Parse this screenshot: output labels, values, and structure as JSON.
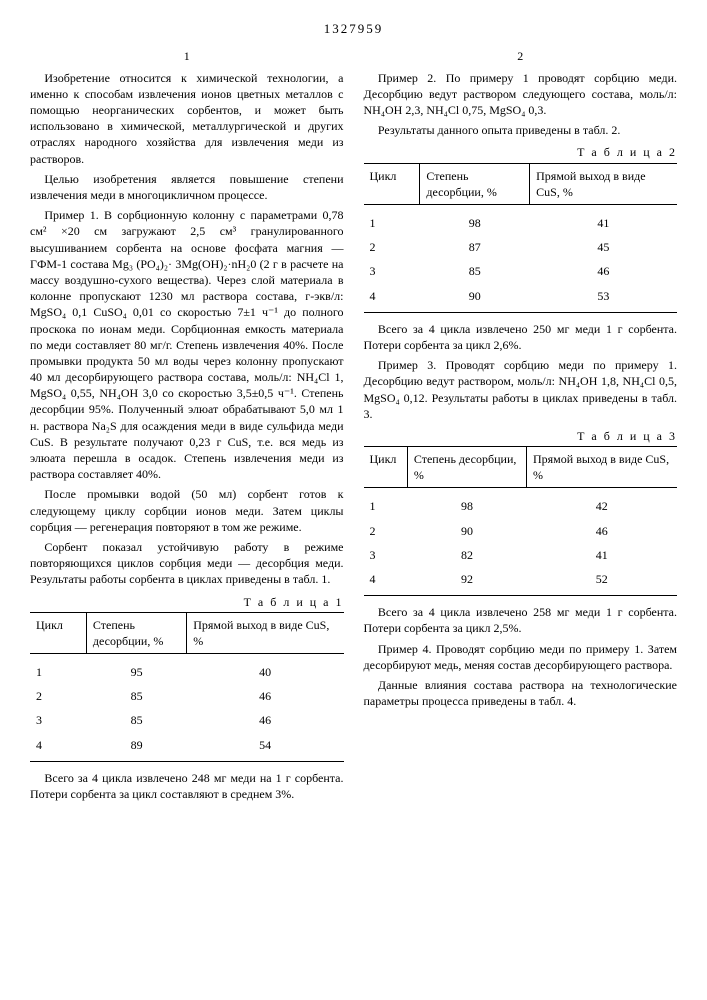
{
  "patent_number": "1327959",
  "left_col_num": "1",
  "right_col_num": "2",
  "line_markers": [
    "5",
    "10",
    "15",
    "20",
    "25",
    "30",
    "35",
    "40",
    "45",
    "50"
  ],
  "left": {
    "p1": "Изобретение относится к химической технологии, а именно к способам извлечения ионов цветных металлов с помощью неорганических сорбентов, и может быть использовано в химической, металлургической и других отраслях народного хозяйства для извлечения меди из растворов.",
    "p2": "Целью изобретения является повышение степени извлечения меди в многоцикличном процессе.",
    "p3": "Пример 1. В сорбционную колонну с параметрами 0,78 см² ×20 см загружают 2,5 см³ гранулированного высушиванием сорбента на основе фосфата магния — ГФМ-1 состава Mg₃ (PO₄)₂· 3Mg(OH)₂·nH₂0 (2 г в расчете на массу воздушно-сухого вещества). Через слой материала в колонне пропускают 1230 мл раствора состава, г-экв/л: MgSO₄ 0,1 CuSO₄ 0,01 со скоростью 7±1 ч⁻¹ до полного проскока по ионам меди. Сорбционная емкость материала по меди составляет 80 мг/г. Степень извлечения 40%. После промывки продукта 50 мл воды через колонну пропускают 40 мл десорбирующего раствора состава, моль/л: NH₄Cl 1, MgSO₄ 0,55, NH₄OH 3,0 со скоростью 3,5±0,5 ч⁻¹. Степень десорбции 95%. Полученный элюат обрабатывают 5,0 мл 1 н. раствора Na₂S для осаждения меди в виде сульфида меди CuS. В результате получают 0,23 г CuS, т.е. вся медь из элюата перешла в осадок. Степень извлечения меди из раствора составляет 40%.",
    "p4": "После промывки водой (50 мл) сорбент готов к следующему циклу сорбции ионов меди. Затем циклы сорбция — регенерация повторяют в том же режиме.",
    "p5": "Сорбент показал устойчивую работу в режиме повторяющихся циклов сорбция меди — десорбция меди. Результаты работы сорбента в циклах приведены в табл. 1.",
    "table1_label": "Т а б л и ц а 1",
    "table1": {
      "headers": [
        "Цикл",
        "Степень десорбции, %",
        "Прямой выход в виде CuS, %"
      ],
      "rows": [
        [
          "1",
          "95",
          "40"
        ],
        [
          "2",
          "85",
          "46"
        ],
        [
          "3",
          "85",
          "46"
        ],
        [
          "4",
          "89",
          "54"
        ]
      ]
    },
    "p6": "Всего за 4 цикла извлечено 248 мг меди на 1 г сорбента. Потери сорбента за цикл составляют в среднем 3%."
  },
  "right": {
    "p1": "Пример 2. По примеру 1 проводят сорбцию меди. Десорбцию ведут раствором следующего состава, моль/л: NH₄OH 2,3, NH₄Cl 0,75, MgSO₄ 0,3.",
    "p2": "Результаты данного опыта приведены в табл. 2.",
    "table2_label": "Т а б л и ц а 2",
    "table2": {
      "headers": [
        "Цикл",
        "Степень десорбции, %",
        "Прямой выход в виде CuS, %"
      ],
      "rows": [
        [
          "1",
          "98",
          "41"
        ],
        [
          "2",
          "87",
          "45"
        ],
        [
          "3",
          "85",
          "46"
        ],
        [
          "4",
          "90",
          "53"
        ]
      ]
    },
    "p3": "Всего за 4 цикла извлечено 250 мг меди 1 г сорбента. Потери сорбента за цикл 2,6%.",
    "p4": "Пример 3. Проводят сорбцию меди по примеру 1. Десорбцию ведут раствором, моль/л: NH₄OH 1,8, NH₄Cl 0,5, MgSO₄ 0,12. Результаты работы в циклах приведены в табл. 3.",
    "table3_label": "Т а б л и ц а 3",
    "table3": {
      "headers": [
        "Цикл",
        "Степень десорбции, %",
        "Прямой выход в виде CuS, %"
      ],
      "rows": [
        [
          "1",
          "98",
          "42"
        ],
        [
          "2",
          "90",
          "46"
        ],
        [
          "3",
          "82",
          "41"
        ],
        [
          "4",
          "92",
          "52"
        ]
      ]
    },
    "p5": "Всего за 4 цикла извлечено 258 мг меди 1 г сорбента. Потери сорбента за цикл 2,5%.",
    "p6": "Пример 4. Проводят сорбцию меди по примеру 1. Затем десорбируют медь, меняя состав десорбирующего раствора.",
    "p7": "Данные влияния состава раствора на технологические параметры процесса приведены в табл. 4."
  }
}
